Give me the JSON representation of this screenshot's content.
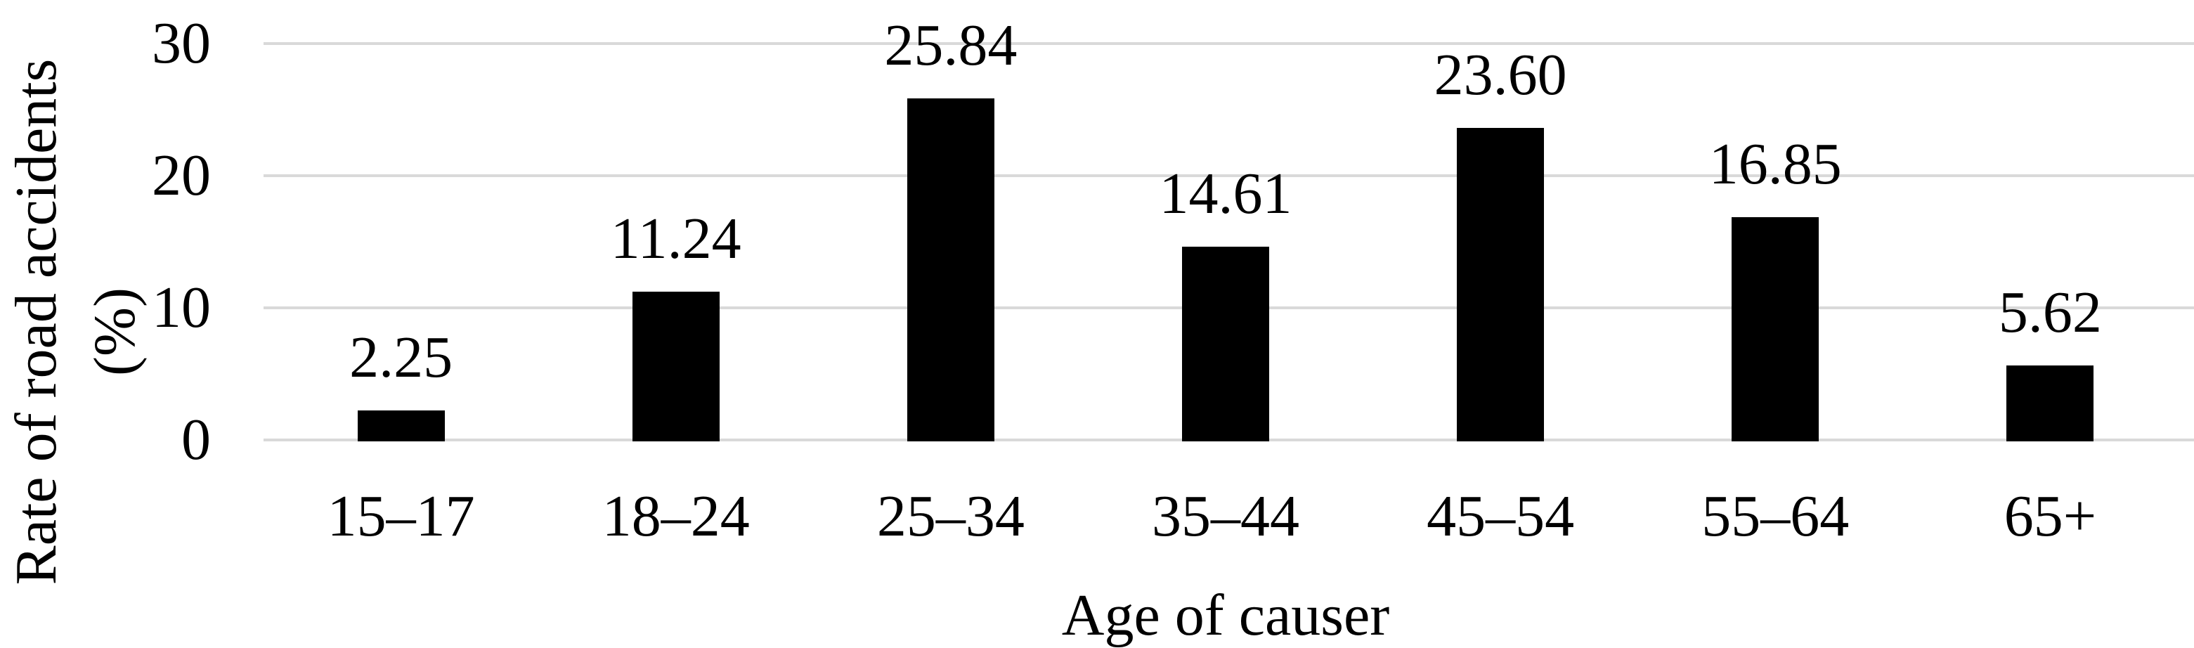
{
  "chart_data": {
    "type": "bar",
    "title": "",
    "categories": [
      "15–17",
      "18–24",
      "25–34",
      "35–44",
      "45–54",
      "55–64",
      "65+"
    ],
    "values": [
      2.25,
      11.24,
      25.84,
      14.61,
      23.6,
      16.85,
      5.62
    ],
    "value_labels": [
      "2.25",
      "11.24",
      "25.84",
      "14.61",
      "23.60",
      "16.85",
      "5.62"
    ],
    "series_name": "Rate of road accidents",
    "xlabel": "Age of causer",
    "ylabel_line1": "Rate of road accidents",
    "ylabel_line2": "(%)",
    "ylim": [
      0,
      30
    ],
    "yticks": [
      0,
      10,
      20,
      30
    ],
    "ytick_labels": [
      "0",
      "10",
      "20",
      "30"
    ],
    "grid": "horizontal",
    "legend": "none",
    "bar_color": "#000000",
    "gridline_color": "#d9d9d9",
    "text_color": "#000000",
    "background_color": "#ffffff"
  }
}
